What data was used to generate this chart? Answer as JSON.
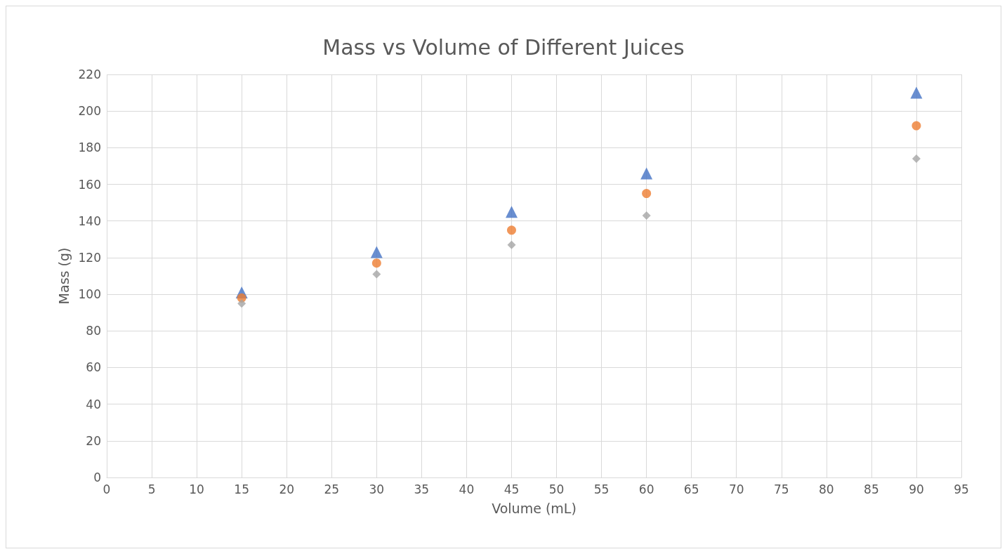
{
  "chart_data": {
    "type": "scatter",
    "title": "Mass vs Volume of Different Juices",
    "xlabel": "Volume (mL)",
    "ylabel": "Mass (g)",
    "x": [
      15,
      30,
      45,
      60,
      90
    ],
    "series": [
      {
        "color": "#4472c4",
        "marker": "triangle",
        "values": [
          101,
          123,
          145,
          166,
          210
        ]
      },
      {
        "color": "#ed7d31",
        "marker": "circle",
        "values": [
          98,
          117,
          135,
          155,
          192
        ]
      },
      {
        "color": "#a5a5a5",
        "marker": "diamond",
        "values": [
          95,
          111,
          127,
          143,
          174
        ]
      }
    ],
    "xlim": [
      0,
      95
    ],
    "xticks": [
      0,
      5,
      10,
      15,
      20,
      25,
      30,
      35,
      40,
      45,
      50,
      55,
      60,
      65,
      70,
      75,
      80,
      85,
      90,
      95
    ],
    "ylim": [
      0,
      220
    ],
    "yticks": [
      0,
      20,
      40,
      60,
      80,
      100,
      120,
      140,
      160,
      180,
      200,
      220
    ],
    "grid": true
  }
}
